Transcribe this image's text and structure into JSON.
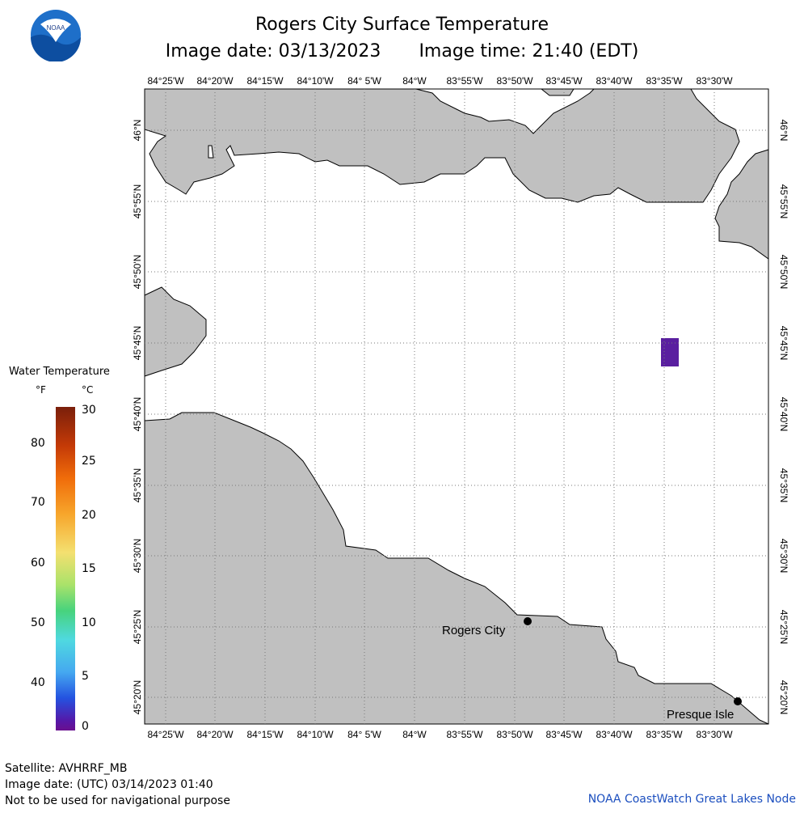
{
  "header": {
    "title": "Rogers City Surface Temperature",
    "image_date": "Image date: 03/13/2023",
    "image_time": "Image time: 21:40 (EDT)"
  },
  "logo": {
    "icon": "noaa-logo-icon",
    "text": "NOAA"
  },
  "map": {
    "lon_labels": [
      "84°25'W",
      "84°20'W",
      "84°15'W",
      "84°10'W",
      "84° 5'W",
      "84°W",
      "83°55'W",
      "83°50'W",
      "83°45'W",
      "83°40'W",
      "83°35'W",
      "83°30'W"
    ],
    "lat_labels": [
      "46°N",
      "45°55'N",
      "45°50'N",
      "45°45'N",
      "45°40'N",
      "45°35'N",
      "45°30'N",
      "45°25'N",
      "45°20'N"
    ],
    "places": [
      {
        "name": "Rogers City"
      },
      {
        "name": "Presque Isle"
      }
    ],
    "colors": {
      "land": "#c0c0c0",
      "water": "#ffffff",
      "grid": "#888888",
      "temperature_patch": "#5a1fa0"
    }
  },
  "legend": {
    "title": "Water Temperature",
    "unit_f": "°F",
    "unit_c": "°C",
    "f_ticks": [
      "80",
      "70",
      "60",
      "50",
      "40"
    ],
    "c_ticks": [
      "30",
      "25",
      "20",
      "15",
      "10",
      "5",
      "0"
    ]
  },
  "footer": {
    "satellite": "Satellite: AVHRRF_MB",
    "utc_date": "Image date: (UTC) 03/14/2023  01:40",
    "disclaimer": "Not to be used for navigational purpose",
    "credit": "NOAA CoastWatch Great Lakes Node"
  }
}
